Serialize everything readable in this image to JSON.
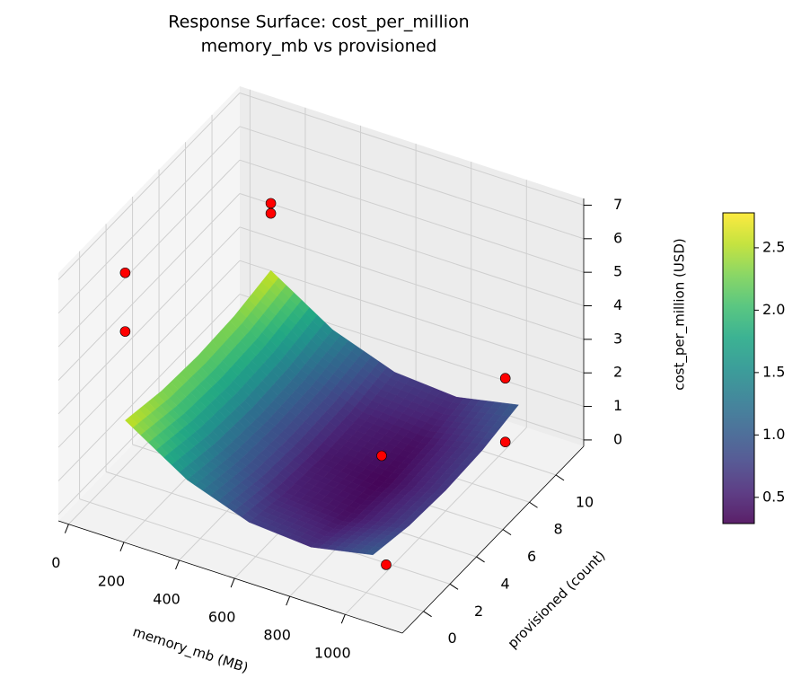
{
  "chart_data": {
    "type": "surface3d",
    "title": "Response Surface: cost_per_million",
    "subtitle": "memory_mb vs provisioned",
    "xlabel": "memory_mb (MB)",
    "ylabel": "provisioned (count)",
    "zlabel": "cost_per_million (USD)",
    "xlim": [
      -37,
      1207
    ],
    "ylim": [
      -1.6,
      12.1
    ],
    "zlim": [
      -0.19,
      7.2
    ],
    "xticks": [
      0,
      200,
      400,
      600,
      800,
      1000
    ],
    "yticks": [
      0,
      2,
      4,
      6,
      8,
      10
    ],
    "zticks": [
      0,
      1,
      2,
      3,
      4,
      5,
      6,
      7
    ],
    "grid": true,
    "surface": {
      "x": [
        128,
        352,
        576,
        800,
        1024
      ],
      "y": [
        0,
        2.75,
        5.5,
        8.25,
        11
      ],
      "z": [
        [
          2.6,
          2.36,
          2.29,
          2.36,
          2.6
        ],
        [
          1.43,
          1.19,
          1.11,
          1.19,
          1.43
        ],
        [
          0.77,
          0.53,
          0.46,
          0.53,
          0.77
        ],
        [
          0.63,
          0.39,
          0.31,
          0.39,
          0.63
        ],
        [
          1.0,
          0.76,
          0.69,
          0.76,
          1.0
        ]
      ],
      "colormap": "viridis"
    },
    "scatter": {
      "x": [
        1024,
        730,
        1024,
        1024,
        128,
        128,
        128,
        128
      ],
      "y": [
        1,
        6.8,
        10,
        10,
        11,
        11,
        0,
        0
      ],
      "z": [
        0.3,
        0.4,
        0.3,
        2.2,
        4.6,
        4.3,
        7.0,
        5.25
      ],
      "color": "#ff0000"
    },
    "colorbar": {
      "lim": [
        0.29,
        2.78
      ],
      "ticks": [
        0.5,
        {
          "value": 1,
          "label": "1.0"
        },
        1.5,
        {
          "value": 2,
          "label": "2.0"
        },
        2.5
      ]
    }
  }
}
